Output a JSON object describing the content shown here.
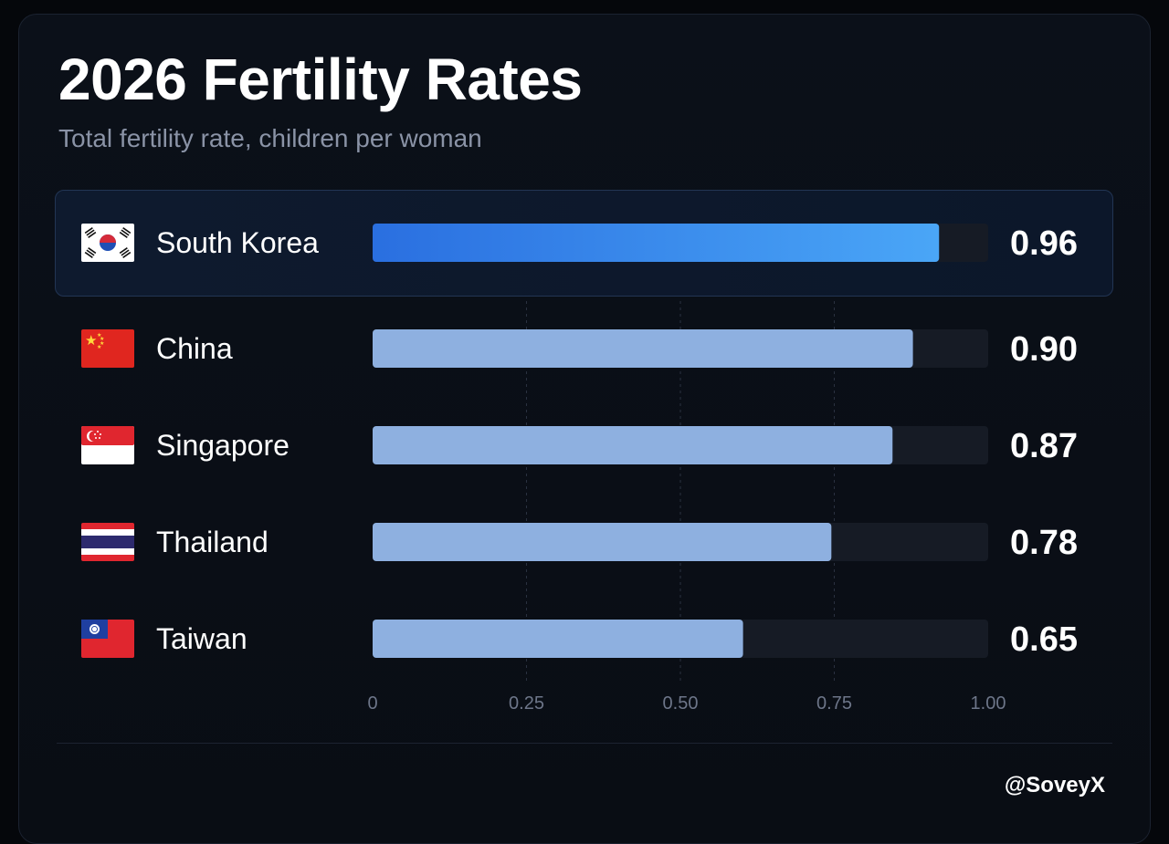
{
  "header": {
    "title": "2026 Fertility Rates",
    "subtitle": "Total fertility rate, children per woman"
  },
  "footer": {
    "credit": "@SoveyX"
  },
  "colors": {
    "highlight_bar_start": "#2a6fe0",
    "highlight_bar_end": "#4aa6f7",
    "bar": "#8eb0e0",
    "track": "#161b25",
    "value_text": "#ffffff"
  },
  "chart_data": {
    "type": "bar",
    "orientation": "horizontal",
    "categories": [
      "South Korea",
      "China",
      "Singapore",
      "Thailand",
      "Taiwan"
    ],
    "values": [
      0.96,
      0.9,
      0.87,
      0.78,
      0.65
    ],
    "value_labels": [
      "0.96",
      "0.90",
      "0.87",
      "0.78",
      "0.65"
    ],
    "flags": [
      "south-korea-flag",
      "china-flag",
      "singapore-flag",
      "thailand-flag",
      "taiwan-flag"
    ],
    "highlighted": "South Korea",
    "xlim": [
      0,
      1.0
    ],
    "xticks": [
      0,
      0.25,
      0.5,
      0.75,
      1.0
    ],
    "xtick_labels": [
      "0",
      "0.25",
      "0.50",
      "0.75",
      "1.00"
    ],
    "grid": "vertical dashed",
    "title": "2026 Fertility Rates",
    "subtitle": "Total fertility rate, children per woman"
  }
}
